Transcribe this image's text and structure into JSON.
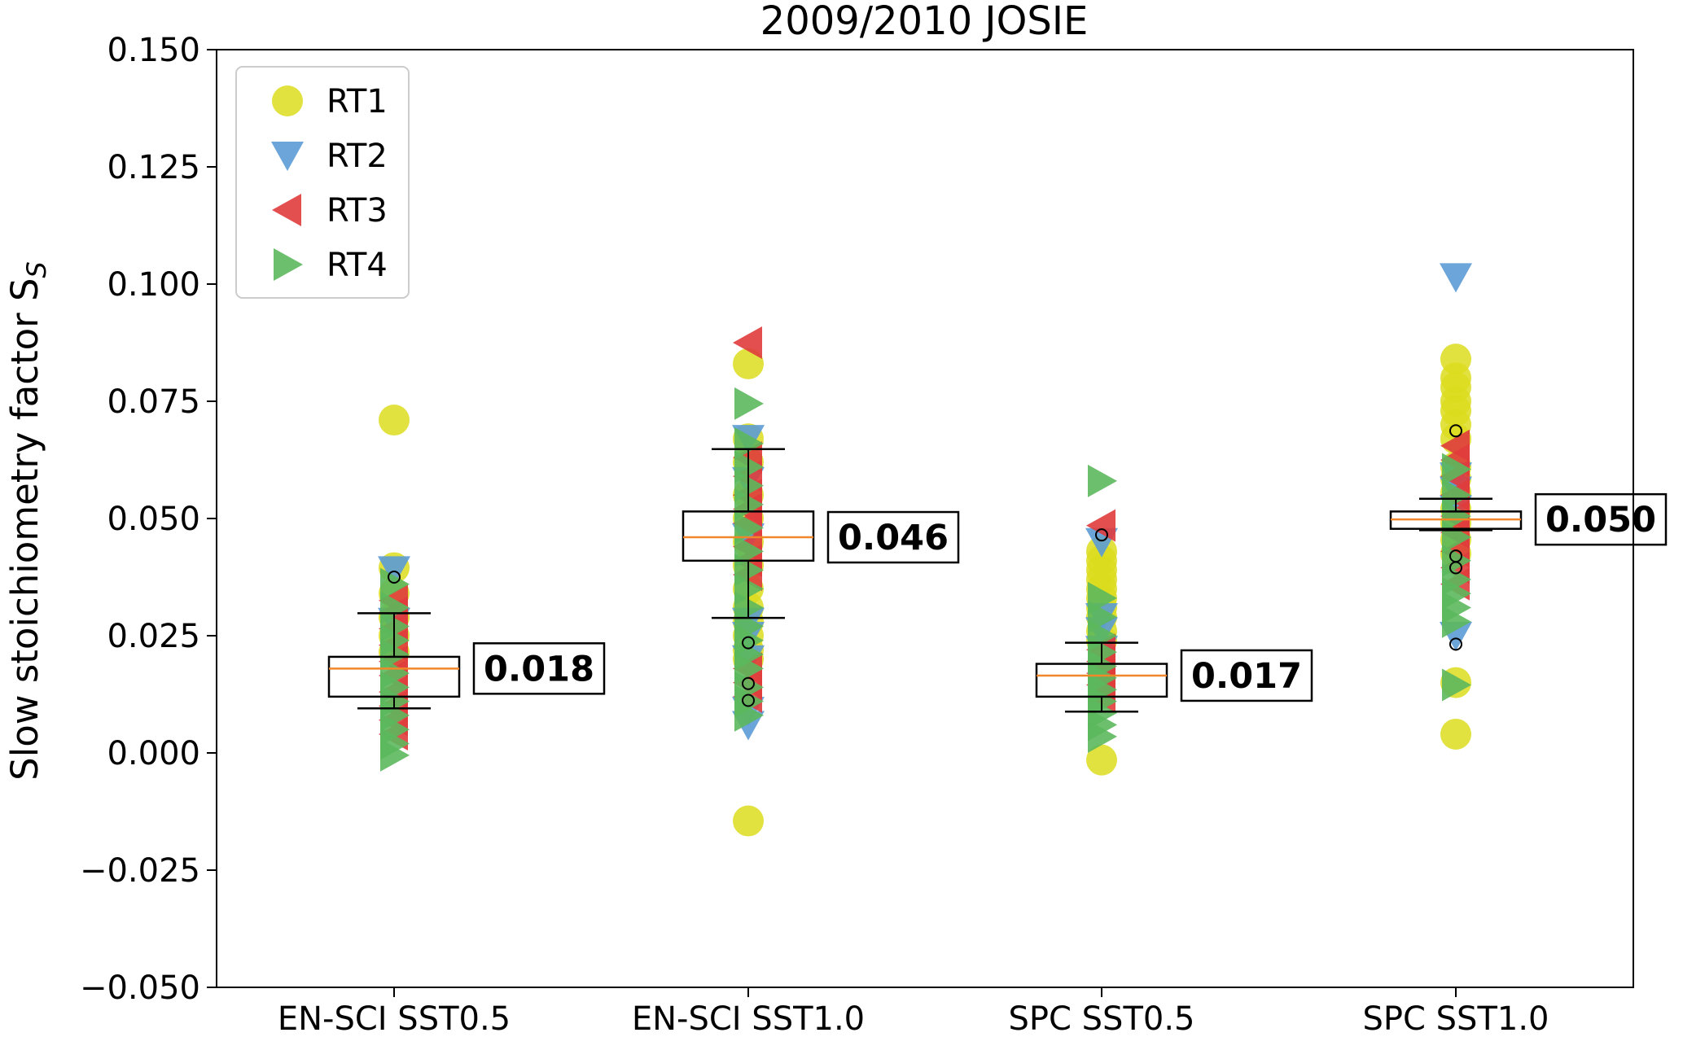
{
  "chart_data": {
    "type": "box",
    "title": "2009/2010 JOSIE",
    "ylabel": "Slow stoichiometry factor S",
    "ylabel_subscript": "S",
    "xlabel": "",
    "ylim": [
      -0.05,
      0.15
    ],
    "yticks": [
      -0.05,
      -0.025,
      0.0,
      0.025,
      0.05,
      0.075,
      0.1,
      0.125,
      0.15
    ],
    "ytick_labels": [
      "−0.050",
      "−0.025",
      "0.000",
      "0.025",
      "0.050",
      "0.075",
      "0.100",
      "0.125",
      "0.150"
    ],
    "categories": [
      "EN-SCI SST0.5",
      "EN-SCI SST1.0",
      "SPC SST0.5",
      "SPC SST1.0"
    ],
    "grid": false,
    "legend_position": "top-left",
    "legend": [
      {
        "name": "RT1",
        "marker": "circle",
        "color": "#DCDC1E"
      },
      {
        "name": "RT2",
        "marker": "triangle-down",
        "color": "#5B9BD5"
      },
      {
        "name": "RT3",
        "marker": "triangle-left",
        "color": "#E03C3C"
      },
      {
        "name": "RT4",
        "marker": "triangle-right",
        "color": "#5CB85C"
      }
    ],
    "boxes": [
      {
        "category": "EN-SCI SST0.5",
        "median": 0.018,
        "median_label": "0.018",
        "q1": 0.012,
        "q3": 0.0205,
        "whisker_low": 0.0095,
        "whisker_high": 0.0298
      },
      {
        "category": "EN-SCI SST1.0",
        "median": 0.046,
        "median_label": "0.046",
        "q1": 0.041,
        "q3": 0.0515,
        "whisker_low": 0.0288,
        "whisker_high": 0.0648
      },
      {
        "category": "SPC SST0.5",
        "median": 0.0165,
        "median_label": "0.017",
        "q1": 0.012,
        "q3": 0.019,
        "whisker_low": 0.0088,
        "whisker_high": 0.0235
      },
      {
        "category": "SPC SST1.0",
        "median": 0.0498,
        "median_label": "0.050",
        "q1": 0.0478,
        "q3": 0.0515,
        "whisker_low": 0.0475,
        "whisker_high": 0.0542
      }
    ],
    "series": [
      {
        "name": "RT1",
        "points": [
          [
            0,
            0.071
          ],
          [
            0,
            0.0395
          ],
          [
            0,
            0.034
          ],
          [
            0,
            0.029
          ],
          [
            0,
            0.025
          ],
          [
            0,
            0.0215
          ],
          [
            1,
            0.083
          ],
          [
            1,
            0.067
          ],
          [
            1,
            0.062
          ],
          [
            1,
            0.055
          ],
          [
            1,
            0.05
          ],
          [
            1,
            0.045
          ],
          [
            1,
            0.04
          ],
          [
            1,
            0.035
          ],
          [
            1,
            0.031
          ],
          [
            1,
            0.028
          ],
          [
            1,
            0.025
          ],
          [
            1,
            0.022
          ],
          [
            1,
            0.02
          ],
          [
            1,
            -0.0145
          ],
          [
            2,
            0.043
          ],
          [
            2,
            0.041
          ],
          [
            2,
            0.039
          ],
          [
            2,
            0.037
          ],
          [
            2,
            0.035
          ],
          [
            2,
            0.033
          ],
          [
            2,
            0.031
          ],
          [
            2,
            0.029
          ],
          [
            2,
            0.026
          ],
          [
            2,
            0.024
          ],
          [
            2,
            -0.0015
          ],
          [
            3,
            0.084
          ],
          [
            3,
            0.08
          ],
          [
            3,
            0.078
          ],
          [
            3,
            0.075
          ],
          [
            3,
            0.073
          ],
          [
            3,
            0.07
          ],
          [
            3,
            0.067
          ],
          [
            3,
            0.061
          ],
          [
            3,
            0.0585
          ],
          [
            3,
            0.0555
          ],
          [
            3,
            0.052
          ],
          [
            3,
            0.049
          ],
          [
            3,
            0.0455
          ],
          [
            3,
            0.0425
          ],
          [
            3,
            0.015
          ],
          [
            3,
            0.004
          ]
        ]
      },
      {
        "name": "RT2",
        "points": [
          [
            0,
            0.039
          ],
          [
            0,
            0.028
          ],
          [
            1,
            0.067
          ],
          [
            1,
            0.058
          ],
          [
            1,
            0.046
          ],
          [
            1,
            0.028
          ],
          [
            1,
            0.025
          ],
          [
            1,
            0.02
          ],
          [
            1,
            0.009
          ],
          [
            1,
            0.006
          ],
          [
            2,
            0.045
          ],
          [
            2,
            0.029
          ],
          [
            2,
            0.026
          ],
          [
            2,
            0.022
          ],
          [
            3,
            0.1015
          ],
          [
            3,
            0.059
          ],
          [
            3,
            0.056
          ],
          [
            3,
            0.052
          ],
          [
            3,
            0.025
          ]
        ]
      },
      {
        "name": "RT3",
        "points": [
          [
            0,
            0.0325
          ],
          [
            0,
            0.03
          ],
          [
            0,
            0.0265
          ],
          [
            0,
            0.023
          ],
          [
            0,
            0.0195
          ],
          [
            0,
            0.0165
          ],
          [
            0,
            0.013
          ],
          [
            0,
            0.01
          ],
          [
            0,
            0.007
          ],
          [
            0,
            0.004
          ],
          [
            1,
            0.0875
          ],
          [
            1,
            0.063
          ],
          [
            1,
            0.059
          ],
          [
            1,
            0.055
          ],
          [
            1,
            0.052
          ],
          [
            1,
            0.049
          ],
          [
            1,
            0.044
          ],
          [
            1,
            0.041
          ],
          [
            1,
            0.038
          ],
          [
            1,
            0.018
          ],
          [
            1,
            0.015
          ],
          [
            1,
            0.012
          ],
          [
            2,
            0.0485
          ],
          [
            2,
            0.022
          ],
          [
            2,
            0.0195
          ],
          [
            2,
            0.017
          ],
          [
            2,
            0.0145
          ],
          [
            2,
            0.012
          ],
          [
            3,
            0.0655
          ],
          [
            3,
            0.0625
          ],
          [
            3,
            0.059
          ],
          [
            3,
            0.055
          ],
          [
            3,
            0.0505
          ],
          [
            3,
            0.047
          ],
          [
            3,
            0.043
          ],
          [
            3,
            0.0395
          ],
          [
            3,
            0.036
          ]
        ]
      },
      {
        "name": "RT4",
        "points": [
          [
            0,
            0.036
          ],
          [
            0,
            0.031
          ],
          [
            0,
            0.027
          ],
          [
            0,
            0.024
          ],
          [
            0,
            0.021
          ],
          [
            0,
            0.017
          ],
          [
            0,
            0.014
          ],
          [
            0,
            0.011
          ],
          [
            0,
            0.008
          ],
          [
            0,
            0.005
          ],
          [
            0,
            0.002
          ],
          [
            0,
            -0.0005
          ],
          [
            1,
            0.0745
          ],
          [
            1,
            0.066
          ],
          [
            1,
            0.061
          ],
          [
            1,
            0.057
          ],
          [
            1,
            0.053
          ],
          [
            1,
            0.048
          ],
          [
            1,
            0.043
          ],
          [
            1,
            0.039
          ],
          [
            1,
            0.035
          ],
          [
            1,
            0.031
          ],
          [
            1,
            0.027
          ],
          [
            1,
            0.024
          ],
          [
            1,
            0.021
          ],
          [
            1,
            0.018
          ],
          [
            1,
            0.014
          ],
          [
            1,
            0.011
          ],
          [
            1,
            0.008
          ],
          [
            2,
            0.058
          ],
          [
            2,
            0.033
          ],
          [
            2,
            0.029
          ],
          [
            2,
            0.025
          ],
          [
            2,
            0.0215
          ],
          [
            2,
            0.0185
          ],
          [
            2,
            0.016
          ],
          [
            2,
            0.0135
          ],
          [
            2,
            0.011
          ],
          [
            2,
            0.0085
          ],
          [
            2,
            0.006
          ],
          [
            2,
            0.0035
          ],
          [
            3,
            0.0605
          ],
          [
            3,
            0.055
          ],
          [
            3,
            0.0505
          ],
          [
            3,
            0.046
          ],
          [
            3,
            0.041
          ],
          [
            3,
            0.037
          ],
          [
            3,
            0.034
          ],
          [
            3,
            0.031
          ],
          [
            3,
            0.028
          ],
          [
            3,
            0.0145
          ]
        ]
      }
    ],
    "outliers": [
      [
        0,
        0.0375
      ],
      [
        1,
        0.0235
      ],
      [
        1,
        0.0148
      ],
      [
        1,
        0.0112
      ],
      [
        2,
        0.0465
      ],
      [
        3,
        0.0687
      ],
      [
        3,
        0.042
      ],
      [
        3,
        0.0395
      ],
      [
        3,
        0.0232
      ]
    ]
  }
}
